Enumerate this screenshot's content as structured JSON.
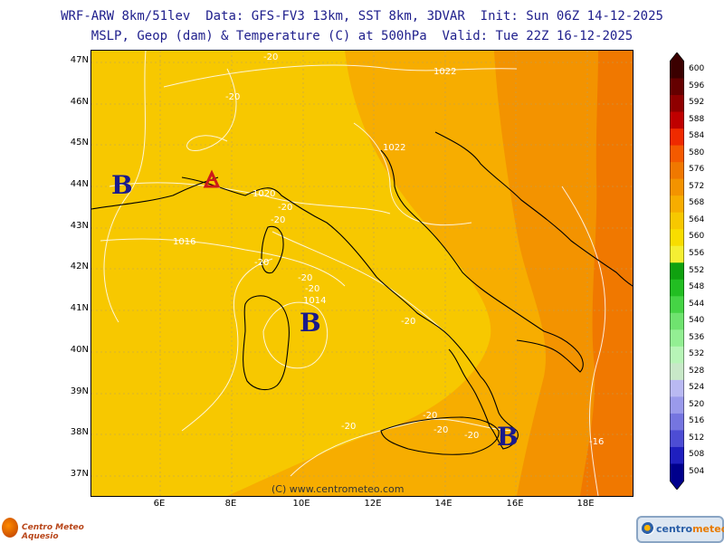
{
  "header": {
    "line1": "WRF-ARW 8km/51lev  Data: GFS-FV3 13km, SST 8km, 3DVAR  Init: Sun 06Z 14-12-2025",
    "line2": "MSLP, Geop (dam) & Temperature (C) at 500hPa  Valid: Tue 22Z 16-12-2025"
  },
  "map": {
    "latitude_labels": [
      "47N",
      "46N",
      "45N",
      "44N",
      "43N",
      "42N",
      "41N",
      "40N",
      "39N",
      "38N",
      "37N"
    ],
    "longitude_labels": [
      "6E",
      "8E",
      "10E",
      "12E",
      "14E",
      "16E",
      "18E"
    ],
    "pressure_centers": [
      {
        "symbol": "B",
        "type": "low",
        "near": "Gulf of Lion"
      },
      {
        "symbol": "A",
        "type": "high",
        "near": "Ligurian coast"
      },
      {
        "symbol": "B",
        "type": "low",
        "near": "Sardinia"
      },
      {
        "symbol": "B",
        "type": "low",
        "near": "Strait of Messina"
      }
    ],
    "isobar_labels": [
      "1022",
      "1022",
      "1020",
      "1016",
      "1014"
    ],
    "temperature_labels": [
      "-20",
      "-20",
      "-20",
      "-20",
      "-20",
      "-20",
      "-20",
      "-20",
      "-20",
      "-20",
      "-20",
      "-20",
      "-20",
      "-16"
    ],
    "colors": {
      "h564": "#f7c800",
      "h568": "#f7ad00",
      "h572": "#f39300",
      "h576": "#f07800",
      "isoline": "#ffffff",
      "border": "#000000",
      "high_symbol": "#cc1a1a",
      "low_symbol": "#1a1a8c"
    }
  },
  "copyright": "(C) www.centrometeo.com",
  "colorbar": {
    "levels": [
      "600",
      "596",
      "592",
      "588",
      "584",
      "580",
      "576",
      "572",
      "568",
      "564",
      "560",
      "556",
      "552",
      "548",
      "544",
      "540",
      "536",
      "532",
      "528",
      "524",
      "520",
      "516",
      "512",
      "508",
      "504"
    ],
    "colors": [
      "#3b0000",
      "#650000",
      "#8f0000",
      "#bf0000",
      "#ef2a00",
      "#f45a00",
      "#f07800",
      "#f39300",
      "#f7ad00",
      "#f7c800",
      "#f8dd00",
      "#f5ef33",
      "#0fa10f",
      "#22be22",
      "#45d445",
      "#6fe36f",
      "#93ef93",
      "#b7f5b7",
      "#c8e8c8",
      "#b9b9f2",
      "#9a9aeb",
      "#7575e0",
      "#4d4dd4",
      "#1f1fbf",
      "#00008c"
    ]
  },
  "logos": {
    "left": "Centro Meteo Aquesio",
    "right_part1": "centro",
    "right_part2": "meteo"
  }
}
